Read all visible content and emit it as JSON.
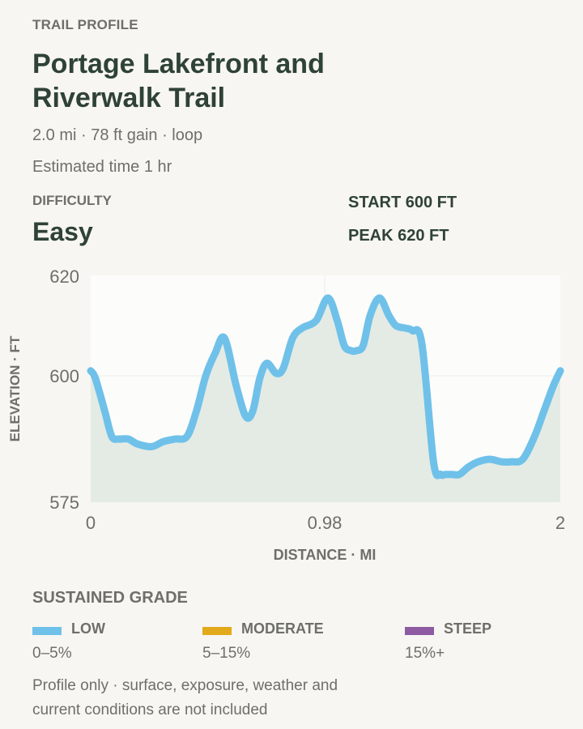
{
  "header": {
    "eyebrow": "TRAIL PROFILE",
    "title": "Portage Lakefront and Riverwalk Trail",
    "summary": "2.0 mi · 78 ft gain · loop",
    "time": "Estimated time 1 hr"
  },
  "difficulty": {
    "label": "DIFFICULTY",
    "value": "Easy"
  },
  "stats": {
    "start": "START 600 FT",
    "peak": "PEAK 620 FT"
  },
  "chart_data": {
    "type": "area",
    "title": "",
    "xlabel": "DISTANCE · MI",
    "ylabel": "ELEVATION · FT",
    "xlim": [
      0,
      2
    ],
    "ylim": [
      575,
      620
    ],
    "x_ticks": [
      0,
      0.98,
      2
    ],
    "x_tick_labels": [
      "0",
      "0.98",
      "2"
    ],
    "y_ticks": [
      575,
      600,
      620
    ],
    "y_tick_labels": [
      "575",
      "600",
      "620"
    ],
    "grid": true,
    "series": [
      {
        "x": [
          0,
          0.02,
          0.06,
          0.09,
          0.12,
          0.16,
          0.2,
          0.26,
          0.31,
          0.36,
          0.41,
          0.45,
          0.49,
          0.53,
          0.57,
          0.62,
          0.66,
          0.69,
          0.72,
          0.75,
          0.79,
          0.82,
          0.86,
          0.9,
          0.96,
          1.01,
          1.05,
          1.08,
          1.11,
          1.13,
          1.16,
          1.19,
          1.23,
          1.27,
          1.3,
          1.34,
          1.37,
          1.41,
          1.46,
          1.49,
          1.51,
          1.54,
          1.57,
          1.61,
          1.65,
          1.7,
          1.75,
          1.79,
          1.84,
          1.89,
          1.93,
          1.97,
          2.0
        ],
        "y": [
          601,
          599.5,
          593,
          588,
          587.5,
          587.5,
          586.5,
          586,
          587,
          587.5,
          588,
          593,
          600,
          604.5,
          607.5,
          598,
          592,
          593,
          599.5,
          602.5,
          600.5,
          601.5,
          607.5,
          609.5,
          611,
          615.5,
          611,
          606,
          605,
          605,
          606,
          612,
          615.5,
          612,
          610,
          609.5,
          609,
          606.5,
          583,
          580.5,
          580.5,
          580.5,
          580.5,
          582,
          583,
          583.5,
          583,
          583,
          583.5,
          588,
          593,
          598,
          601
        ],
        "color": "#6fc1e9"
      }
    ]
  },
  "legend": {
    "title": "SUSTAINED GRADE",
    "items": [
      {
        "name": "LOW",
        "range": "0–5%",
        "color": "#6fc1e9"
      },
      {
        "name": "MODERATE",
        "range": "5–15%",
        "color": "#e2a91a"
      },
      {
        "name": "STEEP",
        "range": "15%+",
        "color": "#8e5aa1"
      }
    ]
  },
  "footnote": "Profile only · surface, exposure, weather and current conditions are not included"
}
